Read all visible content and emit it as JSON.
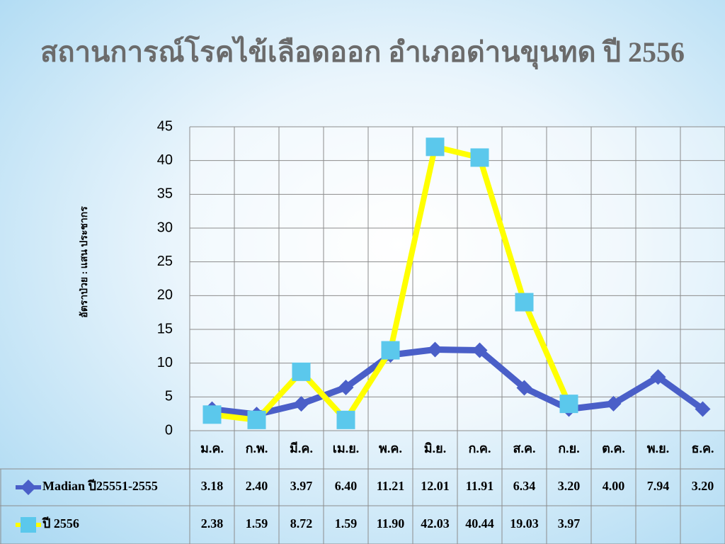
{
  "chart_data": {
    "type": "line",
    "title": "สถานการณ์โรคไข้เลือดออก อำเภอด่านขุนทด ปี 2556",
    "y_label": "อัตราป่วย : แสน ประชากร",
    "categories": [
      "ม.ค.",
      "ก.พ.",
      "มี.ค.",
      "เม.ย.",
      "พ.ค.",
      "มิ.ย.",
      "ก.ค.",
      "ส.ค.",
      "ก.ย.",
      "ต.ค.",
      "พ.ย.",
      "ธ.ค."
    ],
    "series": [
      {
        "name": "Madian ปี25551-2555",
        "color": "#4a5fc8",
        "marker": "diamond",
        "marker_color": "#4a5fc8",
        "values": [
          3.18,
          2.4,
          3.97,
          6.4,
          11.21,
          12.01,
          11.91,
          6.34,
          3.2,
          4.0,
          7.94,
          3.2
        ],
        "value_labels": [
          "3.18",
          "2.40",
          "3.97",
          "6.40",
          "11.21",
          "12.01",
          "11.91",
          "6.34",
          "3.20",
          "4.00",
          "7.94",
          "3.20"
        ]
      },
      {
        "name": "ปี 2556",
        "color": "#ffff00",
        "marker": "square",
        "marker_color": "#5bc8ec",
        "values": [
          2.38,
          1.59,
          8.72,
          1.59,
          11.9,
          42.03,
          40.44,
          19.03,
          3.97,
          null,
          null,
          null
        ],
        "value_labels": [
          "2.38",
          "1.59",
          "8.72",
          "1.59",
          "11.90",
          "42.03",
          "40.44",
          "19.03",
          "3.97",
          null,
          null,
          null
        ]
      }
    ],
    "ylim": [
      0,
      45
    ],
    "yticks": [
      0,
      5,
      10,
      15,
      20,
      25,
      30,
      35,
      40,
      45
    ],
    "grid": true
  }
}
